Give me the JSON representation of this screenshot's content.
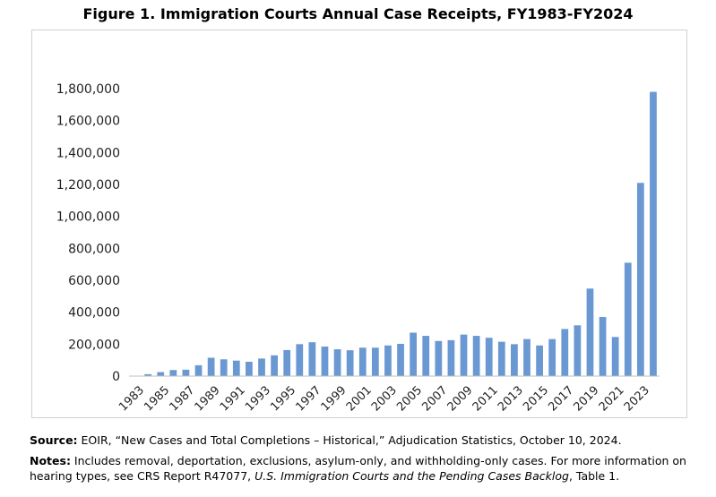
{
  "title": "Figure 1. Immigration Courts Annual Case Receipts, FY1983-FY2024",
  "chart_data": {
    "type": "bar",
    "title": "Figure 1. Immigration Courts Annual Case Receipts, FY1983-FY2024",
    "xlabel": "",
    "ylabel": "",
    "ylim": [
      0,
      1800000
    ],
    "yticks": [
      "0",
      "200,000",
      "400,000",
      "600,000",
      "800,000",
      "1,000,000",
      "1,200,000",
      "1,400,000",
      "1,600,000",
      "1,800,000"
    ],
    "xtick_labels": [
      "1983",
      "1985",
      "1987",
      "1989",
      "1991",
      "1993",
      "1995",
      "1997",
      "1999",
      "2001",
      "2003",
      "2005",
      "2007",
      "2009",
      "2011",
      "2013",
      "2015",
      "2017",
      "2019",
      "2021",
      "2023"
    ],
    "categories": [
      "1983",
      "1984",
      "1985",
      "1986",
      "1987",
      "1988",
      "1989",
      "1990",
      "1991",
      "1992",
      "1993",
      "1994",
      "1995",
      "1996",
      "1997",
      "1998",
      "1999",
      "2000",
      "2001",
      "2002",
      "2003",
      "2004",
      "2005",
      "2006",
      "2007",
      "2008",
      "2009",
      "2010",
      "2011",
      "2012",
      "2013",
      "2014",
      "2015",
      "2016",
      "2017",
      "2018",
      "2019",
      "2020",
      "2021",
      "2022",
      "2023",
      "2024"
    ],
    "values": [
      2000,
      12000,
      25000,
      38000,
      40000,
      68000,
      115000,
      105000,
      97000,
      90000,
      110000,
      130000,
      163000,
      200000,
      212000,
      185000,
      168000,
      162000,
      178000,
      178000,
      192000,
      202000,
      272000,
      252000,
      220000,
      225000,
      260000,
      252000,
      240000,
      215000,
      200000,
      232000,
      192000,
      232000,
      295000,
      318000,
      548000,
      370000,
      245000,
      710000,
      1210000,
      1780000
    ],
    "bar_color": "#6a98d2",
    "grid": false,
    "legend": "none"
  },
  "footer": {
    "source_label": "Source:",
    "source_text": " EOIR, “New Cases and Total Completions – Historical,” Adjudication Statistics, October 10, 2024.",
    "notes_label": "Notes:",
    "notes_text": " Includes removal, deportation, exclusions, asylum-only, and withholding-only cases. For more information on hearing types, see CRS Report R47077, ",
    "notes_italic": "U.S. Immigration Courts and the Pending Cases Backlog",
    "notes_end": ", Table 1."
  }
}
